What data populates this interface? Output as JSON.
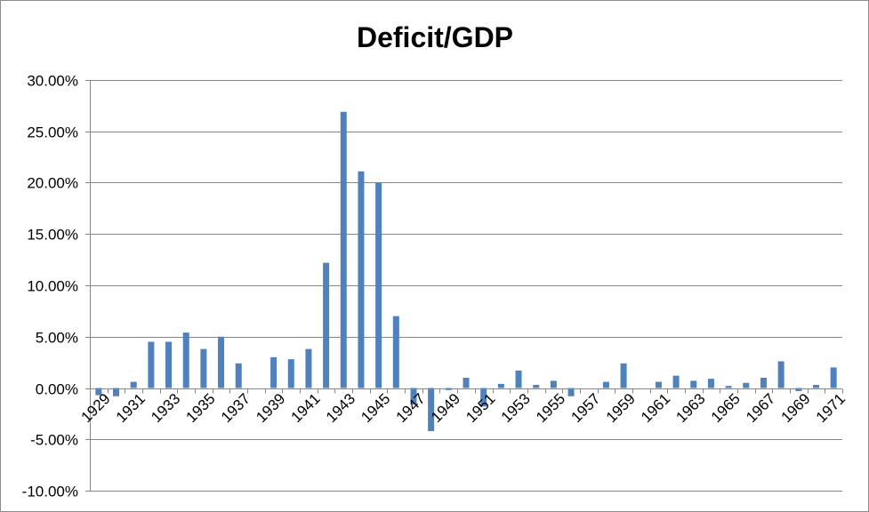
{
  "chart_data": {
    "type": "bar",
    "title": "Deficit/GDP",
    "xlabel": "",
    "ylabel": "",
    "ylim": [
      -0.1,
      0.3
    ],
    "y_tick_values": [
      -0.1,
      -0.05,
      0.0,
      0.05,
      0.1,
      0.15,
      0.2,
      0.25,
      0.3
    ],
    "y_tick_labels": [
      "-10.00%",
      "-5.00%",
      "0.00%",
      "5.00%",
      "10.00%",
      "15.00%",
      "20.00%",
      "25.00%",
      "30.00%"
    ],
    "gridlines": "horizontal",
    "legend": "none",
    "bar_color": "#4f81bd",
    "categories": [
      "1929",
      "1930",
      "1931",
      "1932",
      "1933",
      "1934",
      "1935",
      "1936",
      "1937",
      "1938",
      "1939",
      "1940",
      "1941",
      "1942",
      "1943",
      "1944",
      "1945",
      "1946",
      "1947",
      "1948",
      "1949",
      "1950",
      "1951",
      "1952",
      "1953",
      "1954",
      "1955",
      "1956",
      "1957",
      "1958",
      "1959",
      "1960",
      "1961",
      "1962",
      "1963",
      "1964",
      "1965",
      "1966",
      "1967",
      "1968",
      "1969",
      "1970",
      "1971"
    ],
    "x_tick_labels": [
      "1929",
      "",
      "1931",
      "",
      "1933",
      "",
      "1935",
      "",
      "1937",
      "",
      "1939",
      "",
      "1941",
      "",
      "1943",
      "",
      "1945",
      "",
      "1947",
      "",
      "1949",
      "",
      "1951",
      "",
      "1953",
      "",
      "1955",
      "",
      "1957",
      "",
      "1959",
      "",
      "1961",
      "",
      "1963",
      "",
      "1965",
      "",
      "1967",
      "",
      "1969",
      "",
      "1971"
    ],
    "values": [
      -0.007,
      -0.008,
      0.006,
      0.045,
      0.045,
      0.054,
      0.038,
      0.05,
      0.024,
      0.0,
      0.03,
      0.028,
      0.038,
      0.122,
      0.269,
      0.211,
      0.2,
      0.07,
      -0.016,
      -0.042,
      -0.002,
      0.01,
      -0.018,
      0.004,
      0.017,
      0.003,
      0.007,
      -0.008,
      0.0,
      0.006,
      0.024,
      0.0,
      0.006,
      0.012,
      0.007,
      0.009,
      0.002,
      0.005,
      0.01,
      0.026,
      -0.003,
      0.003,
      0.02
    ]
  }
}
